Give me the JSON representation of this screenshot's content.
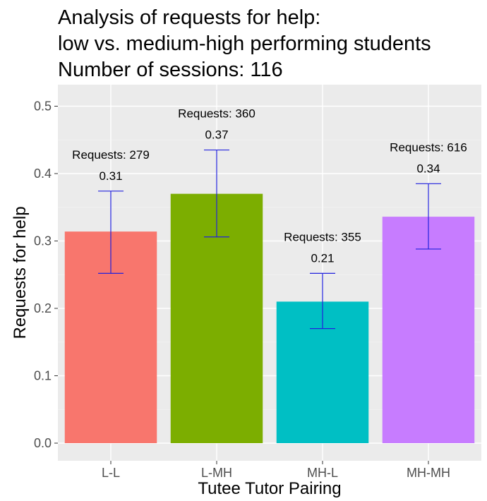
{
  "chart_data": {
    "type": "bar",
    "title": [
      "Analysis of requests for help:",
      "low vs. medium-high performing students",
      "Number of sessions: 116"
    ],
    "xlabel": "Tutee Tutor Pairing",
    "ylabel": "Requests for help",
    "ylim": [
      0,
      0.52
    ],
    "yticks": [
      0.0,
      0.1,
      0.2,
      0.3,
      0.4,
      0.5
    ],
    "ytick_labels": [
      "0.0",
      "0.1",
      "0.2",
      "0.3",
      "0.4",
      "0.5"
    ],
    "grid": true,
    "legend": "none",
    "categories": [
      "L-L",
      "L-MH",
      "MH-L",
      "MH-MH"
    ],
    "values": [
      0.314,
      0.37,
      0.21,
      0.336
    ],
    "error_low": [
      0.252,
      0.306,
      0.17,
      0.288
    ],
    "error_high": [
      0.374,
      0.435,
      0.252,
      0.385
    ],
    "colors": [
      "#f8766d",
      "#7cae00",
      "#00bfc4",
      "#c77cff"
    ],
    "error_color": "#2222dd",
    "annotations": [
      {
        "requests": "Requests: 279",
        "value": "0.31"
      },
      {
        "requests": "Requests: 360",
        "value": "0.37"
      },
      {
        "requests": "Requests: 355",
        "value": "0.21"
      },
      {
        "requests": "Requests: 616",
        "value": "0.34"
      }
    ]
  }
}
